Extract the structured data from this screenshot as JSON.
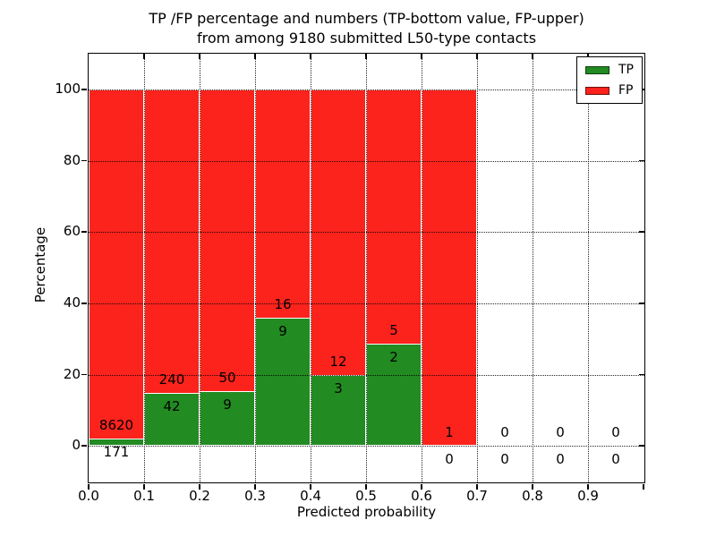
{
  "title": {
    "line1": "TP /FP percentage and numbers (TP-bottom value, FP-upper)",
    "line2": "from among 9180 submitted L50-type contacts"
  },
  "ylabel": "Percentage",
  "xlabel": "Predicted probability",
  "legend": [
    {
      "label": "TP",
      "color": "#228b22"
    },
    {
      "label": "FP",
      "color": "#fb231c"
    }
  ],
  "chart_data": {
    "type": "bar",
    "stacked": true,
    "title": "TP /FP percentage and numbers (TP-bottom value, FP-upper) from among 9180 submitted L50-type contacts",
    "xlabel": "Predicted probability",
    "ylabel": "Percentage",
    "xlim": [
      0.0,
      1.0
    ],
    "ylim": [
      -10,
      110
    ],
    "yticks": [
      0,
      20,
      40,
      60,
      80,
      100
    ],
    "xticks": [
      "0.0",
      "0.1",
      "0.2",
      "0.3",
      "0.4",
      "0.5",
      "0.6",
      "0.7",
      "0.8",
      "0.9"
    ],
    "grid": true,
    "legend_position": "upper right",
    "total_contacts": 9180,
    "series": [
      {
        "name": "TP",
        "color": "#228b22",
        "position": "bottom"
      },
      {
        "name": "FP",
        "color": "#fb231c",
        "position": "top"
      }
    ],
    "bins": [
      {
        "x_start": 0.0,
        "x_end": 0.1,
        "tp": 171,
        "fp": 8620,
        "tp_pct": 1.95,
        "fp_pct": 98.05
      },
      {
        "x_start": 0.1,
        "x_end": 0.2,
        "tp": 42,
        "fp": 240,
        "tp_pct": 14.89,
        "fp_pct": 85.11
      },
      {
        "x_start": 0.2,
        "x_end": 0.3,
        "tp": 9,
        "fp": 50,
        "tp_pct": 15.25,
        "fp_pct": 84.75
      },
      {
        "x_start": 0.3,
        "x_end": 0.4,
        "tp": 9,
        "fp": 16,
        "tp_pct": 36.0,
        "fp_pct": 64.0
      },
      {
        "x_start": 0.4,
        "x_end": 0.5,
        "tp": 3,
        "fp": 12,
        "tp_pct": 20.0,
        "fp_pct": 80.0
      },
      {
        "x_start": 0.5,
        "x_end": 0.6,
        "tp": 2,
        "fp": 5,
        "tp_pct": 28.57,
        "fp_pct": 71.43
      },
      {
        "x_start": 0.6,
        "x_end": 0.7,
        "tp": 0,
        "fp": 1,
        "tp_pct": 0.0,
        "fp_pct": 100.0
      },
      {
        "x_start": 0.7,
        "x_end": 0.8,
        "tp": 0,
        "fp": 0,
        "tp_pct": null,
        "fp_pct": null
      },
      {
        "x_start": 0.8,
        "x_end": 0.9,
        "tp": 0,
        "fp": 0,
        "tp_pct": null,
        "fp_pct": null
      },
      {
        "x_start": 0.9,
        "x_end": 1.0,
        "tp": 0,
        "fp": 0,
        "tp_pct": null,
        "fp_pct": null
      }
    ]
  }
}
